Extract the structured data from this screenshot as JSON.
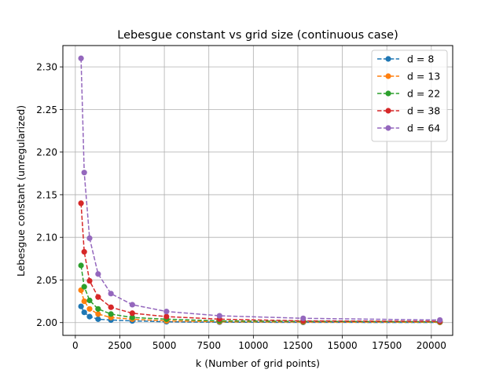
{
  "chart_data": {
    "type": "line",
    "title": "Lebesgue constant vs grid size (continuous case)",
    "xlabel": "k (Number of grid points)",
    "ylabel": "Lebesgue constant (unregularized)",
    "xlim": [
      -700,
      21200
    ],
    "ylim": [
      1.985,
      2.325
    ],
    "xticks": [
      0,
      2500,
      5000,
      7500,
      10000,
      12500,
      15000,
      17500,
      20000
    ],
    "xtick_labels": [
      "0",
      "2500",
      "5000",
      "7500",
      "10000",
      "12500",
      "15000",
      "17500",
      "20000"
    ],
    "yticks": [
      2.0,
      2.05,
      2.1,
      2.15,
      2.2,
      2.25,
      2.3
    ],
    "ytick_labels": [
      "2.00",
      "2.05",
      "2.10",
      "2.15",
      "2.20",
      "2.25",
      "2.30"
    ],
    "grid": true,
    "legend_position": "top-right",
    "x": [
      320,
      500,
      800,
      1280,
      2000,
      3200,
      5120,
      8100,
      12800,
      20480
    ],
    "series": [
      {
        "name": "d = 8",
        "color": "#1f77b4",
        "values": [
          2.019,
          2.012,
          2.007,
          2.004,
          2.003,
          2.002,
          2.001,
          2.0005,
          2.0003,
          2.0002
        ]
      },
      {
        "name": "d = 13",
        "color": "#ff7f0e",
        "values": [
          2.038,
          2.025,
          2.016,
          2.01,
          2.006,
          2.004,
          2.002,
          2.001,
          2.0007,
          2.0004
        ]
      },
      {
        "name": "d = 22",
        "color": "#2ca02c",
        "values": [
          2.067,
          2.042,
          2.026,
          2.016,
          2.01,
          2.006,
          2.004,
          2.002,
          2.0015,
          2.001
        ]
      },
      {
        "name": "d = 38",
        "color": "#d62728",
        "values": [
          2.14,
          2.083,
          2.049,
          2.03,
          2.018,
          2.011,
          2.007,
          2.004,
          2.002,
          2.0015
        ]
      },
      {
        "name": "d = 64",
        "color": "#9467bd",
        "values": [
          2.31,
          2.176,
          2.099,
          2.057,
          2.034,
          2.021,
          2.013,
          2.008,
          2.005,
          2.003
        ]
      }
    ]
  }
}
